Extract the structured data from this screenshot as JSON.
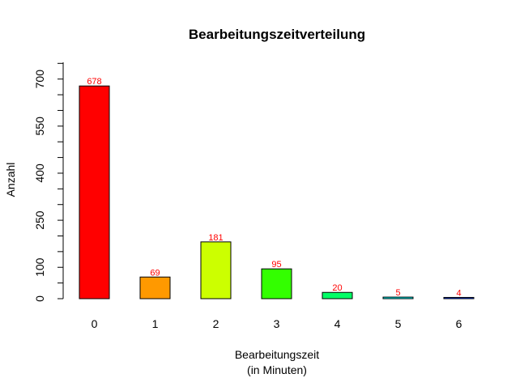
{
  "chart_data": {
    "type": "bar",
    "title": "Bearbeitungszeitverteilung",
    "xlabel_line1": "Bearbeitungszeit",
    "xlabel_line2": "(in Minuten)",
    "ylabel": "Anzahl",
    "categories": [
      "0",
      "1",
      "2",
      "3",
      "4",
      "5",
      "6"
    ],
    "values": [
      678,
      69,
      181,
      95,
      20,
      5,
      4
    ],
    "bar_colors": [
      "#ff0000",
      "#ff9900",
      "#ccff00",
      "#33ff00",
      "#00ff66",
      "#00ffff",
      "#0033ff"
    ],
    "label_color": "#ff0000",
    "yticks": [
      0,
      100,
      250,
      400,
      550,
      700
    ],
    "yminor_ticks": [
      50,
      150,
      200,
      300,
      350,
      450,
      500,
      600,
      650,
      750
    ],
    "ylim": [
      0,
      750
    ],
    "grid": false,
    "legend": "none"
  }
}
